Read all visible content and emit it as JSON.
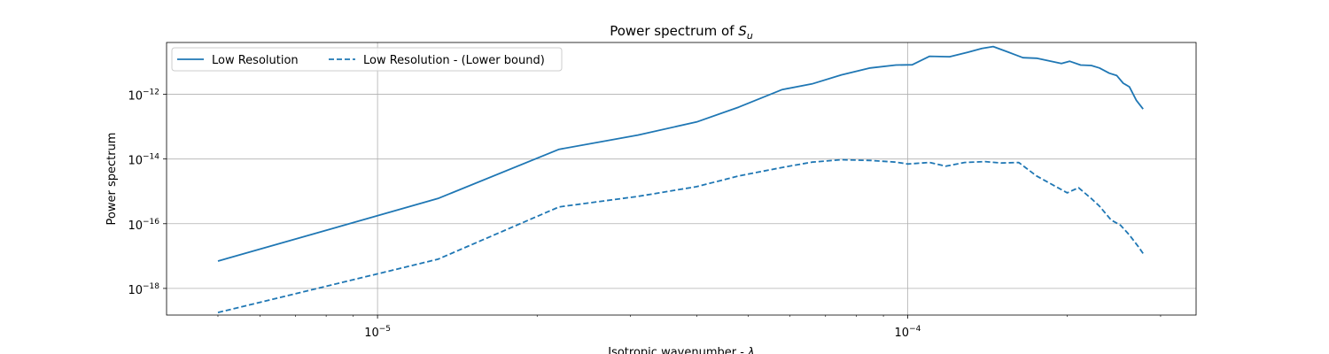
{
  "chart_data": {
    "type": "line",
    "title_main": "Power spectrum of ",
    "title_var": "S",
    "title_sub": "u",
    "xlabel_main": "Isotropic wavenumber - ",
    "xlabel_sym": "λ",
    "ylabel": "Power spectrum",
    "x_scale": "log",
    "y_scale": "log",
    "xlim": [
      4e-06,
      0.00035
    ],
    "ylim": [
      1.5e-19,
      4e-11
    ],
    "grid": true,
    "legend_placement": "top-left",
    "x_major_ticks": [
      {
        "value": 1e-05,
        "base": "10",
        "exp": "−5"
      },
      {
        "value": 0.0001,
        "base": "10",
        "exp": "−4"
      }
    ],
    "y_major_ticks": [
      {
        "value": 1e-18,
        "base": "10",
        "exp": "−18"
      },
      {
        "value": 1e-16,
        "base": "10",
        "exp": "−16"
      },
      {
        "value": 1e-14,
        "base": "10",
        "exp": "−14"
      },
      {
        "value": 1e-12,
        "base": "10",
        "exp": "−12"
      }
    ],
    "series": [
      {
        "name": "Low Resolution",
        "style": "solid",
        "color": "#1f77b4",
        "points": [
          [
            5e-06,
            7e-18
          ],
          [
            1.3e-05,
            6e-16
          ],
          [
            2.2e-05,
            2e-14
          ],
          [
            3.1e-05,
            5.5e-14
          ],
          [
            4e-05,
            1.4e-13
          ],
          [
            4.8e-05,
            4e-13
          ],
          [
            5.8e-05,
            1.4e-12
          ],
          [
            6.6e-05,
            2.1e-12
          ],
          [
            7.5e-05,
            4e-12
          ],
          [
            8.5e-05,
            6.5e-12
          ],
          [
            9.5e-05,
            8e-12
          ],
          [
            0.000102,
            8.2e-12
          ],
          [
            0.00011,
            1.5e-11
          ],
          [
            0.00012,
            1.45e-11
          ],
          [
            0.00013,
            2e-11
          ],
          [
            0.000138,
            2.6e-11
          ],
          [
            0.000145,
            3e-11
          ],
          [
            0.000155,
            2e-11
          ],
          [
            0.000165,
            1.35e-11
          ],
          [
            0.000175,
            1.3e-11
          ],
          [
            0.000195,
            9e-12
          ],
          [
            0.000202,
            1.05e-11
          ],
          [
            0.000212,
            8e-12
          ],
          [
            0.000222,
            7.8e-12
          ],
          [
            0.00023,
            6.5e-12
          ],
          [
            0.00024,
            4.5e-12
          ],
          [
            0.000248,
            3.8e-12
          ],
          [
            0.000255,
            2.2e-12
          ],
          [
            0.000262,
            1.7e-12
          ],
          [
            0.00027,
            6.5e-13
          ],
          [
            0.000278,
            3.5e-13
          ]
        ]
      },
      {
        "name": "Low Resolution - (Lower bound)",
        "style": "dashed",
        "color": "#1f77b4",
        "points": [
          [
            5e-06,
            1.8e-19
          ],
          [
            1.3e-05,
            8e-18
          ],
          [
            2.2e-05,
            3.3e-16
          ],
          [
            3.1e-05,
            7e-16
          ],
          [
            4e-05,
            1.4e-15
          ],
          [
            4.8e-05,
            3e-15
          ],
          [
            5.8e-05,
            5.5e-15
          ],
          [
            6.6e-05,
            8e-15
          ],
          [
            7.5e-05,
            9.5e-15
          ],
          [
            8.5e-05,
            9e-15
          ],
          [
            9.5e-05,
            8e-15
          ],
          [
            0.0001,
            7e-15
          ],
          [
            0.00011,
            7.8e-15
          ],
          [
            0.000118,
            6e-15
          ],
          [
            0.000128,
            7.8e-15
          ],
          [
            0.00014,
            8.3e-15
          ],
          [
            0.00015,
            7.5e-15
          ],
          [
            0.000162,
            7.8e-15
          ],
          [
            0.000175,
            3e-15
          ],
          [
            0.000192,
            1.3e-15
          ],
          [
            0.0002,
            9e-16
          ],
          [
            0.00021,
            1.3e-15
          ],
          [
            0.000222,
            6e-16
          ],
          [
            0.00023,
            3.5e-16
          ],
          [
            0.000242,
            1.3e-16
          ],
          [
            0.000252,
            9e-17
          ],
          [
            0.000262,
            4.5e-17
          ],
          [
            0.000272,
            2e-17
          ],
          [
            0.000278,
            1.2e-17
          ]
        ]
      }
    ]
  }
}
